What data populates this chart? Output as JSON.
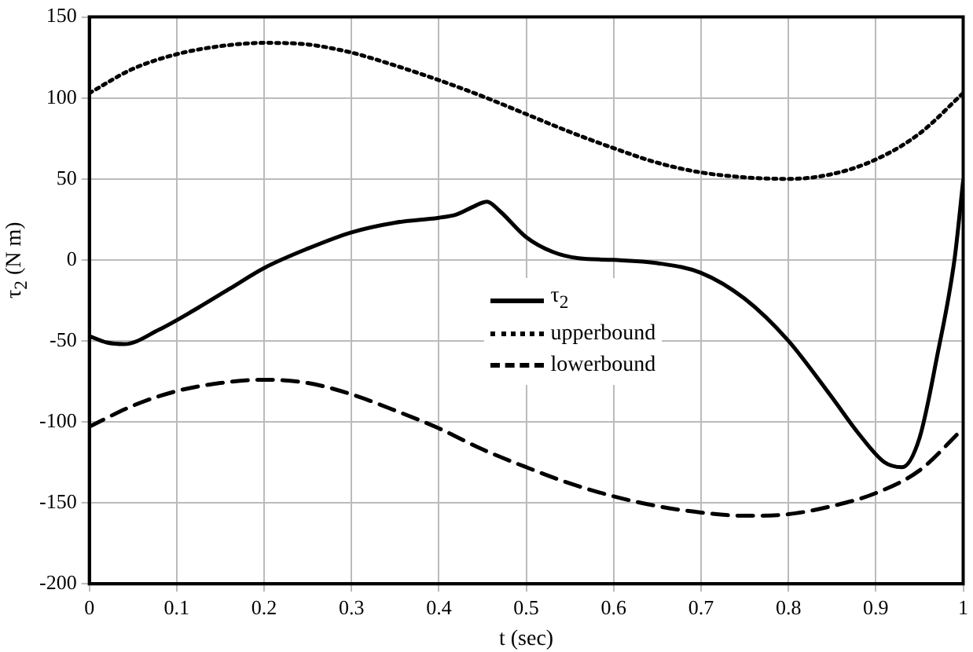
{
  "chart_data": {
    "type": "line",
    "xlabel": "t (sec)",
    "ylabel": "τ$_{2}$ (N m)",
    "xlim": [
      0,
      1
    ],
    "xticks": [
      0,
      0.1,
      0.2,
      0.3,
      0.4,
      0.5,
      0.6,
      0.7,
      0.8,
      0.9,
      1
    ],
    "ylim": [
      -200,
      150
    ],
    "yticks": [
      -200,
      -150,
      -100,
      -50,
      0,
      50,
      100,
      150
    ],
    "grid": true,
    "legend": "center",
    "marker": "none",
    "series": [
      {
        "name": "τ$_{2}$",
        "color": "#000000",
        "line_style": "solid",
        "x": [
          0,
          0.02,
          0.04,
          0.08,
          0.12,
          0.16,
          0.2,
          0.25,
          0.3,
          0.35,
          0.4,
          0.42,
          0.44,
          0.455,
          0.47,
          0.5,
          0.53,
          0.56,
          0.6,
          0.65,
          0.7,
          0.75,
          0.8,
          0.85,
          0.88,
          0.91,
          0.93,
          0.95,
          0.97,
          0.99,
          1
        ],
        "values": [
          -47,
          -51,
          -52,
          -43,
          -31,
          -18,
          -5,
          7,
          17,
          23,
          26,
          28,
          33,
          36,
          30,
          14,
          5,
          1,
          0,
          -2,
          -8,
          -24,
          -50,
          -85,
          -107,
          -125,
          -128,
          -110,
          -60,
          0,
          49
        ]
      },
      {
        "name": "upperbound",
        "color": "#000000",
        "line_style": "dotted",
        "x": [
          0,
          0.05,
          0.1,
          0.15,
          0.2,
          0.25,
          0.3,
          0.35,
          0.4,
          0.45,
          0.5,
          0.55,
          0.6,
          0.65,
          0.7,
          0.75,
          0.8,
          0.85,
          0.9,
          0.95,
          1
        ],
        "values": [
          103,
          118,
          127,
          132,
          134,
          133,
          128,
          120,
          111,
          101,
          90,
          79,
          69,
          60,
          54,
          51,
          50,
          53,
          62,
          78,
          103
        ]
      },
      {
        "name": "lowerbound",
        "color": "#000000",
        "line_style": "dashed",
        "x": [
          0,
          0.05,
          0.1,
          0.15,
          0.2,
          0.25,
          0.3,
          0.35,
          0.4,
          0.45,
          0.5,
          0.55,
          0.6,
          0.65,
          0.7,
          0.75,
          0.8,
          0.85,
          0.9,
          0.95,
          1
        ],
        "values": [
          -103,
          -90,
          -81,
          -76,
          -74,
          -76,
          -83,
          -93,
          -104,
          -117,
          -128,
          -138,
          -146,
          -152,
          -156,
          -158,
          -157,
          -152,
          -144,
          -130,
          -104
        ]
      }
    ]
  }
}
